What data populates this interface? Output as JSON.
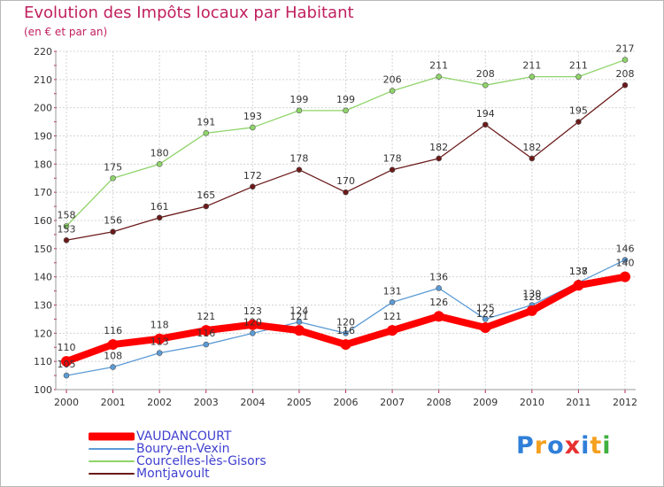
{
  "header": {
    "title": "Evolution des Impôts locaux par Habitant",
    "subtitle": "(en € et par an)"
  },
  "logo": {
    "text": "Proxiti",
    "letter_colors": [
      "#2f7fd8",
      "#f4a020",
      "#2f7fd8",
      "#e83030",
      "#2f7fd8",
      "#f4a020",
      "#40b040"
    ]
  },
  "chart_data": {
    "type": "line",
    "x": [
      "2000",
      "2001",
      "2002",
      "2003",
      "2004",
      "2005",
      "2006",
      "2007",
      "2008",
      "2009",
      "2010",
      "2011",
      "2012"
    ],
    "ylim": [
      100,
      220
    ],
    "yticks": [
      100,
      110,
      120,
      130,
      140,
      150,
      160,
      170,
      180,
      190,
      200,
      210,
      220
    ],
    "grid": true,
    "legend_position": "bottom-left",
    "series": [
      {
        "name": "VAUDANCOURT",
        "color": "#ff0000",
        "emphasis": true,
        "values": [
          110,
          116,
          118,
          121,
          123,
          121,
          116,
          121,
          126,
          122,
          128,
          137,
          140
        ]
      },
      {
        "name": "Boury-en-Vexin",
        "color": "#5b9bd5",
        "values": [
          105,
          108,
          113,
          116,
          120,
          124,
          120,
          131,
          136,
          125,
          130,
          138,
          146
        ]
      },
      {
        "name": "Courcelles-lès-Gisors",
        "color": "#8fd46a",
        "values": [
          158,
          175,
          180,
          191,
          193,
          199,
          199,
          206,
          211,
          208,
          211,
          211,
          217
        ]
      },
      {
        "name": "Montjavoult",
        "color": "#6b1a1a",
        "values": [
          153,
          156,
          161,
          165,
          172,
          178,
          170,
          178,
          182,
          194,
          182,
          195,
          208
        ]
      }
    ]
  }
}
